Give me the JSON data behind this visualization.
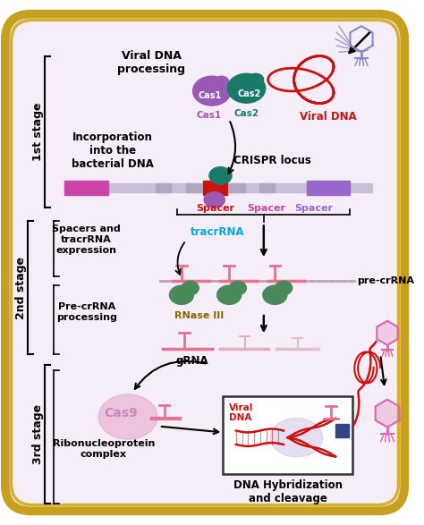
{
  "bg_color": "#f5eef8",
  "border_color_outer": "#c8a020",
  "border_color_inner": "#d4b030",
  "stage1_label": "1st stage",
  "stage2_label": "2nd stage",
  "stage3_label": "3rd stage",
  "stage1_text1": "Viral DNA\nprocessing",
  "stage1_text2": "Incorporation\ninto the\nbacterial DNA",
  "stage1_text3": "CRISPR locus",
  "cas1_label": "Cas1",
  "cas2_label": "Cas2",
  "viral_dna_label": "Viral DNA",
  "spacer1_label": "Spacer",
  "spacer2_label": "Spacer",
  "spacer3_label": "Spacer",
  "stage2_text1": "Spacers and\ntracrRNA\nexpression",
  "stage2_text2": "Pre-crRNA\nprocessing",
  "tracr_label": "tracrRNA",
  "rnase_label": "RNase III",
  "pre_crRNA_label": "pre-crRNA",
  "gRNA_label": "gRNA",
  "stage3_text1": "Ribonucleoprotein\ncomplex",
  "cas9_label": "Cas9",
  "viral_dna_box_label": "Viral\nDNA",
  "dna_hyb_label": "DNA Hybridization\nand cleavage",
  "cas1_color": "#9b59b6",
  "cas2_color": "#1a7a6a",
  "viral_dna_color": "#cc1111",
  "spacer1_color": "#cc1111",
  "spacer2_color": "#cc44aa",
  "spacer3_color": "#9966cc",
  "tracr_color": "#00aadd",
  "rnase_color": "#886600",
  "cas9_color": "#e8a0c8",
  "cas9_text_color": "#cc88bb",
  "locus_bar_color": "#c8c0d8",
  "locus_pink_end": "#cc44aa",
  "locus_purple_end": "#9966cc",
  "pre_crRNA_pink": "#e87090",
  "pre_crRNA_dotted": "#d0a0c0",
  "grna_color": "#e87090",
  "grna_light": "#e0b0c0",
  "dna_hyb_red": "#cc1111",
  "box_border_color": "#333333",
  "green_enzyme": "#4a8a5a",
  "phage_blue": "#8888cc",
  "phage_pink": "#dd66aa"
}
